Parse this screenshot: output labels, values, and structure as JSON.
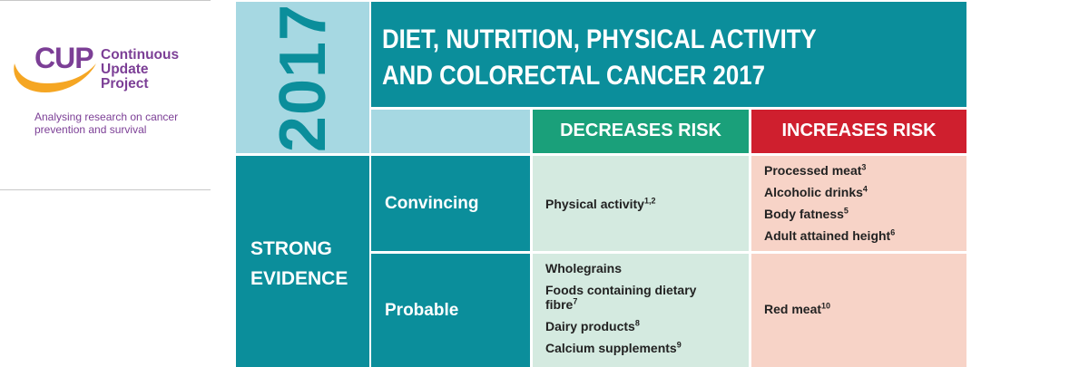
{
  "cup": {
    "logo_letters": "CUP",
    "name_lines": [
      "Continuous",
      "Update",
      "Project"
    ],
    "tagline_lines": [
      "Analysing research on cancer",
      "prevention and survival"
    ],
    "brand_purple": "#7c3f96",
    "brand_orange": "#f5a623"
  },
  "matrix": {
    "year": "2017",
    "title_lines": [
      "DIET, NUTRITION, PHYSICAL ACTIVITY",
      "AND COLORECTAL CANCER 2017"
    ],
    "decreases_label": "DECREASES RISK",
    "increases_label": "INCREASES RISK",
    "evidence_lines": [
      "STRONG",
      "EVIDENCE"
    ],
    "rows": [
      {
        "label": "Convincing",
        "decreases": [
          {
            "text": "Physical activity",
            "sup": "1,2"
          }
        ],
        "increases": [
          {
            "text": "Processed meat",
            "sup": "3"
          },
          {
            "text": "Alcoholic drinks",
            "sup": "4"
          },
          {
            "text": "Body fatness",
            "sup": "5"
          },
          {
            "text": "Adult attained height",
            "sup": "6"
          }
        ]
      },
      {
        "label": "Probable",
        "decreases": [
          {
            "text": "Wholegrains",
            "sup": ""
          },
          {
            "text": "Foods containing dietary fibre",
            "sup": "7"
          },
          {
            "text": "Dairy products",
            "sup": "8"
          },
          {
            "text": "Calcium supplements",
            "sup": "9"
          }
        ],
        "increases": [
          {
            "text": "Red meat",
            "sup": "10"
          }
        ]
      }
    ],
    "colors": {
      "teal": "#0b8e9b",
      "light_blue": "#a6d8e2",
      "decreases_green": "#1aa07a",
      "increases_red": "#cf1f2e",
      "decreases_bg": "#d4eae0",
      "increases_bg": "#f7d3c7"
    }
  }
}
